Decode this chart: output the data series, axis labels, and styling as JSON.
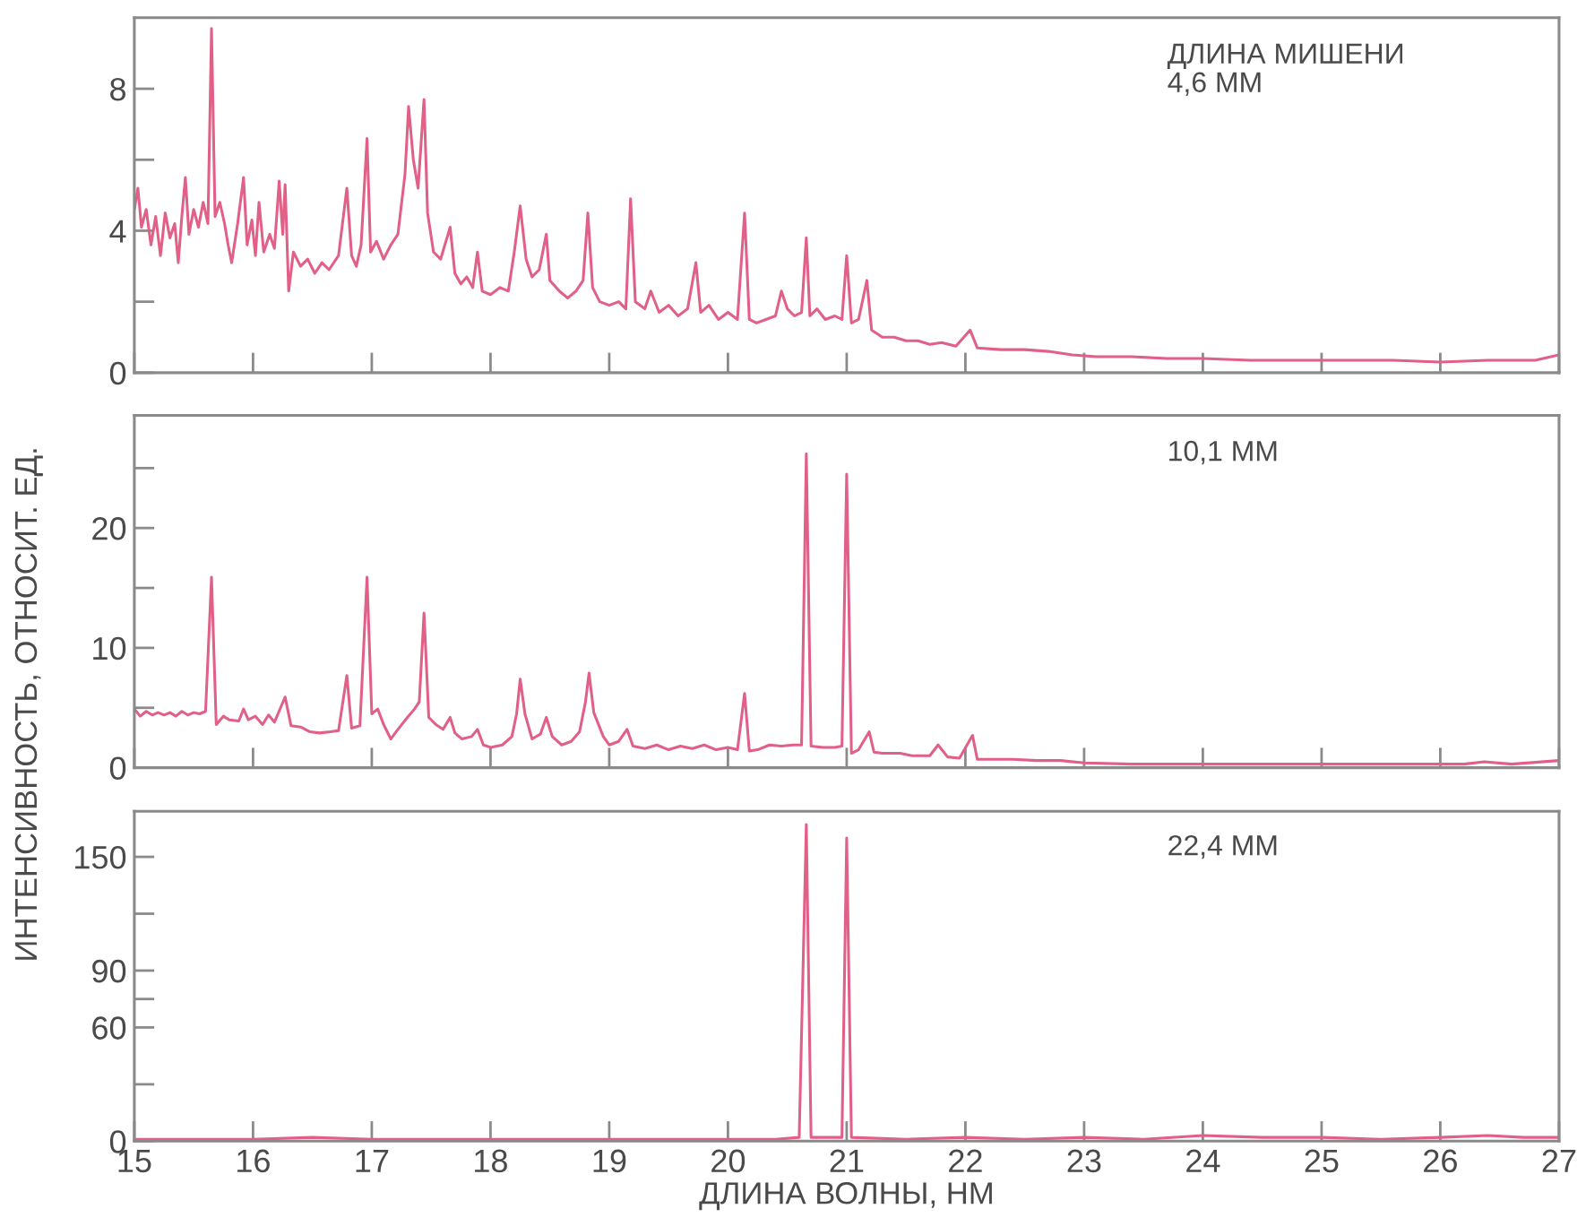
{
  "chart_data": [
    {
      "type": "line",
      "color": "#e06088",
      "xlim": [
        15,
        27
      ],
      "ylim": [
        0,
        10
      ],
      "tick_labels": "y",
      "xticks": [
        15,
        16,
        17,
        18,
        19,
        20,
        21,
        22,
        23,
        24,
        25,
        26,
        27
      ],
      "yticks": [
        0,
        {
          "value": 2,
          "label": null
        },
        4,
        {
          "value": 6,
          "label": null
        },
        8
      ],
      "annotations": [
        "ДЛИНА МИШЕНИ\n4,6 ММ"
      ],
      "x": [
        15.0,
        15.03,
        15.06,
        15.1,
        15.14,
        15.18,
        15.22,
        15.26,
        15.3,
        15.34,
        15.37,
        15.4,
        15.43,
        15.46,
        15.5,
        15.54,
        15.58,
        15.62,
        15.65,
        15.68,
        15.72,
        15.76,
        15.79,
        15.82,
        15.87,
        15.92,
        15.95,
        15.99,
        16.02,
        16.05,
        16.09,
        16.14,
        16.18,
        16.22,
        16.25,
        16.27,
        16.3,
        16.34,
        16.4,
        16.46,
        16.52,
        16.58,
        16.64,
        16.72,
        16.79,
        16.83,
        16.87,
        16.91,
        16.96,
        16.99,
        17.04,
        17.1,
        17.16,
        17.22,
        17.28,
        17.31,
        17.35,
        17.39,
        17.44,
        17.47,
        17.52,
        17.58,
        17.66,
        17.7,
        17.75,
        17.8,
        17.85,
        17.89,
        17.93,
        18.0,
        18.08,
        18.15,
        18.2,
        18.25,
        18.3,
        18.35,
        18.41,
        18.47,
        18.5,
        18.58,
        18.65,
        18.72,
        18.78,
        18.82,
        18.86,
        18.92,
        19.0,
        19.08,
        19.14,
        19.18,
        19.22,
        19.3,
        19.35,
        19.42,
        19.5,
        19.58,
        19.66,
        19.73,
        19.77,
        19.84,
        19.92,
        20.0,
        20.08,
        20.14,
        20.18,
        20.24,
        20.32,
        20.4,
        20.45,
        20.5,
        20.56,
        20.62,
        20.66,
        20.69,
        20.75,
        20.82,
        20.9,
        20.96,
        21.0,
        21.04,
        21.1,
        21.17,
        21.21,
        21.3,
        21.4,
        21.5,
        21.6,
        21.7,
        21.8,
        21.92,
        22.04,
        22.1,
        22.3,
        22.5,
        22.7,
        22.9,
        23.1,
        23.4,
        23.7,
        24.0,
        24.4,
        24.8,
        25.2,
        25.6,
        26.0,
        26.4,
        26.8,
        27.0
      ],
      "values": [
        4.6,
        5.2,
        4.1,
        4.6,
        3.6,
        4.4,
        3.3,
        4.5,
        3.8,
        4.2,
        3.1,
        4.4,
        5.5,
        3.9,
        4.6,
        4.1,
        4.8,
        4.2,
        9.7,
        4.4,
        4.8,
        4.2,
        3.6,
        3.1,
        4.2,
        5.5,
        3.6,
        4.3,
        3.3,
        4.8,
        3.4,
        3.9,
        3.5,
        5.4,
        3.9,
        5.3,
        2.3,
        3.4,
        3.0,
        3.2,
        2.8,
        3.1,
        2.9,
        3.3,
        5.2,
        3.3,
        3.0,
        3.6,
        6.6,
        3.4,
        3.7,
        3.2,
        3.6,
        3.9,
        5.6,
        7.5,
        6.0,
        5.2,
        7.7,
        4.5,
        3.4,
        3.2,
        4.1,
        2.8,
        2.5,
        2.7,
        2.4,
        3.4,
        2.3,
        2.2,
        2.4,
        2.3,
        3.4,
        4.7,
        3.2,
        2.7,
        2.9,
        3.9,
        2.6,
        2.3,
        2.1,
        2.3,
        2.6,
        4.5,
        2.4,
        2.0,
        1.9,
        2.0,
        1.8,
        4.9,
        2.0,
        1.8,
        2.3,
        1.7,
        1.9,
        1.6,
        1.8,
        3.1,
        1.7,
        1.9,
        1.5,
        1.7,
        1.5,
        4.5,
        1.5,
        1.4,
        1.5,
        1.6,
        2.3,
        1.8,
        1.6,
        1.7,
        3.8,
        1.6,
        1.8,
        1.5,
        1.6,
        1.5,
        3.3,
        1.4,
        1.5,
        2.6,
        1.2,
        1.0,
        1.0,
        0.9,
        0.9,
        0.8,
        0.85,
        0.75,
        1.2,
        0.7,
        0.65,
        0.65,
        0.6,
        0.5,
        0.45,
        0.45,
        0.4,
        0.4,
        0.35,
        0.35,
        0.35,
        0.35,
        0.3,
        0.35,
        0.35,
        0.5
      ]
    },
    {
      "type": "line",
      "color": "#e06088",
      "xlim": [
        15,
        27
      ],
      "ylim": [
        0,
        29.4
      ],
      "tick_labels": "y",
      "ylabel": "ИНТЕНСИВНОСТЬ, ОТНОСИТ. ЕД.",
      "xticks": [
        15,
        16,
        17,
        18,
        19,
        20,
        21,
        22,
        23,
        24,
        25,
        26,
        27
      ],
      "yticks": [
        0,
        {
          "value": 5,
          "label": null
        },
        10,
        {
          "value": 15,
          "label": null
        },
        20,
        {
          "value": 25,
          "label": null
        }
      ],
      "annotations": [
        "10,1 ММ"
      ],
      "x": [
        15.0,
        15.05,
        15.1,
        15.15,
        15.2,
        15.25,
        15.3,
        15.35,
        15.4,
        15.45,
        15.5,
        15.55,
        15.6,
        15.65,
        15.69,
        15.75,
        15.8,
        15.88,
        15.92,
        15.96,
        16.02,
        16.08,
        16.13,
        16.18,
        16.27,
        16.32,
        16.4,
        16.48,
        16.56,
        16.65,
        16.72,
        16.79,
        16.83,
        16.9,
        16.96,
        17.0,
        17.05,
        17.1,
        17.16,
        17.22,
        17.3,
        17.36,
        17.4,
        17.44,
        17.48,
        17.54,
        17.6,
        17.66,
        17.7,
        17.76,
        17.84,
        17.89,
        17.94,
        18.0,
        18.1,
        18.18,
        18.22,
        18.25,
        18.29,
        18.35,
        18.42,
        18.47,
        18.52,
        18.6,
        18.68,
        18.75,
        18.8,
        18.83,
        18.87,
        18.95,
        19.0,
        19.08,
        19.15,
        19.2,
        19.3,
        19.4,
        19.5,
        19.6,
        19.7,
        19.8,
        19.9,
        20.0,
        20.08,
        20.14,
        20.18,
        20.25,
        20.35,
        20.45,
        20.55,
        20.62,
        20.66,
        20.7,
        20.8,
        20.9,
        20.96,
        21.0,
        21.04,
        21.1,
        21.19,
        21.23,
        21.3,
        21.45,
        21.55,
        21.7,
        21.77,
        21.85,
        21.95,
        22.06,
        22.1,
        22.2,
        22.4,
        22.6,
        22.8,
        23.0,
        23.4,
        23.8,
        24.2,
        24.6,
        25.0,
        25.4,
        25.8,
        26.2,
        26.37,
        26.6,
        27.0
      ],
      "values": [
        4.9,
        4.3,
        4.7,
        4.4,
        4.6,
        4.4,
        4.6,
        4.3,
        4.7,
        4.4,
        4.6,
        4.5,
        4.7,
        15.9,
        3.6,
        4.3,
        4.0,
        3.9,
        4.9,
        4.0,
        4.3,
        3.6,
        4.4,
        3.8,
        5.9,
        3.5,
        3.4,
        3.0,
        2.9,
        3.0,
        3.1,
        7.7,
        3.3,
        3.5,
        15.9,
        4.5,
        4.9,
        3.6,
        2.4,
        3.2,
        4.2,
        4.9,
        5.5,
        12.9,
        4.2,
        3.6,
        3.2,
        4.2,
        2.9,
        2.4,
        2.6,
        3.2,
        1.9,
        1.7,
        1.9,
        2.6,
        4.5,
        7.4,
        4.5,
        2.4,
        2.8,
        4.2,
        2.6,
        1.9,
        2.2,
        3.0,
        5.5,
        7.9,
        4.6,
        2.6,
        1.9,
        2.2,
        3.2,
        1.8,
        1.6,
        1.9,
        1.5,
        1.8,
        1.6,
        1.9,
        1.5,
        1.7,
        1.5,
        6.2,
        1.4,
        1.5,
        1.9,
        1.8,
        1.9,
        1.9,
        26.2,
        1.8,
        1.7,
        1.7,
        1.8,
        24.5,
        1.2,
        1.5,
        3.0,
        1.3,
        1.2,
        1.2,
        1.0,
        1.0,
        1.9,
        0.9,
        0.8,
        2.7,
        0.7,
        0.7,
        0.7,
        0.6,
        0.6,
        0.4,
        0.3,
        0.3,
        0.3,
        0.3,
        0.3,
        0.3,
        0.3,
        0.3,
        0.5,
        0.3,
        0.6
      ]
    },
    {
      "type": "line",
      "color": "#e06088",
      "xlim": [
        15,
        27
      ],
      "ylim": [
        0,
        174
      ],
      "xlabel": "ДЛИНА ВОЛНЫ, НМ",
      "xticks": [
        15,
        16,
        17,
        18,
        19,
        20,
        21,
        22,
        23,
        24,
        25,
        26,
        27
      ],
      "yticks": [
        0,
        {
          "value": 30,
          "label": null
        },
        60,
        {
          "value": 75,
          "label": null
        },
        90,
        {
          "value": 120,
          "label": null
        },
        150
      ],
      "annotations": [
        "22,4 ММ"
      ],
      "x": [
        15.0,
        15.5,
        16.0,
        16.5,
        17.0,
        17.5,
        18.0,
        18.5,
        19.0,
        19.5,
        20.0,
        20.4,
        20.6,
        20.66,
        20.7,
        20.85,
        20.96,
        21.0,
        21.04,
        21.5,
        22.0,
        22.5,
        23.0,
        23.5,
        24.0,
        24.5,
        25.0,
        25.5,
        26.0,
        26.4,
        26.7,
        27.0
      ],
      "values": [
        1,
        1,
        1,
        2,
        1,
        1,
        1,
        1,
        1,
        1,
        1,
        1,
        2,
        167,
        2,
        2,
        2,
        160,
        2,
        1,
        2,
        1,
        2,
        1,
        3,
        2,
        2,
        1,
        2,
        3,
        2,
        2
      ]
    }
  ]
}
